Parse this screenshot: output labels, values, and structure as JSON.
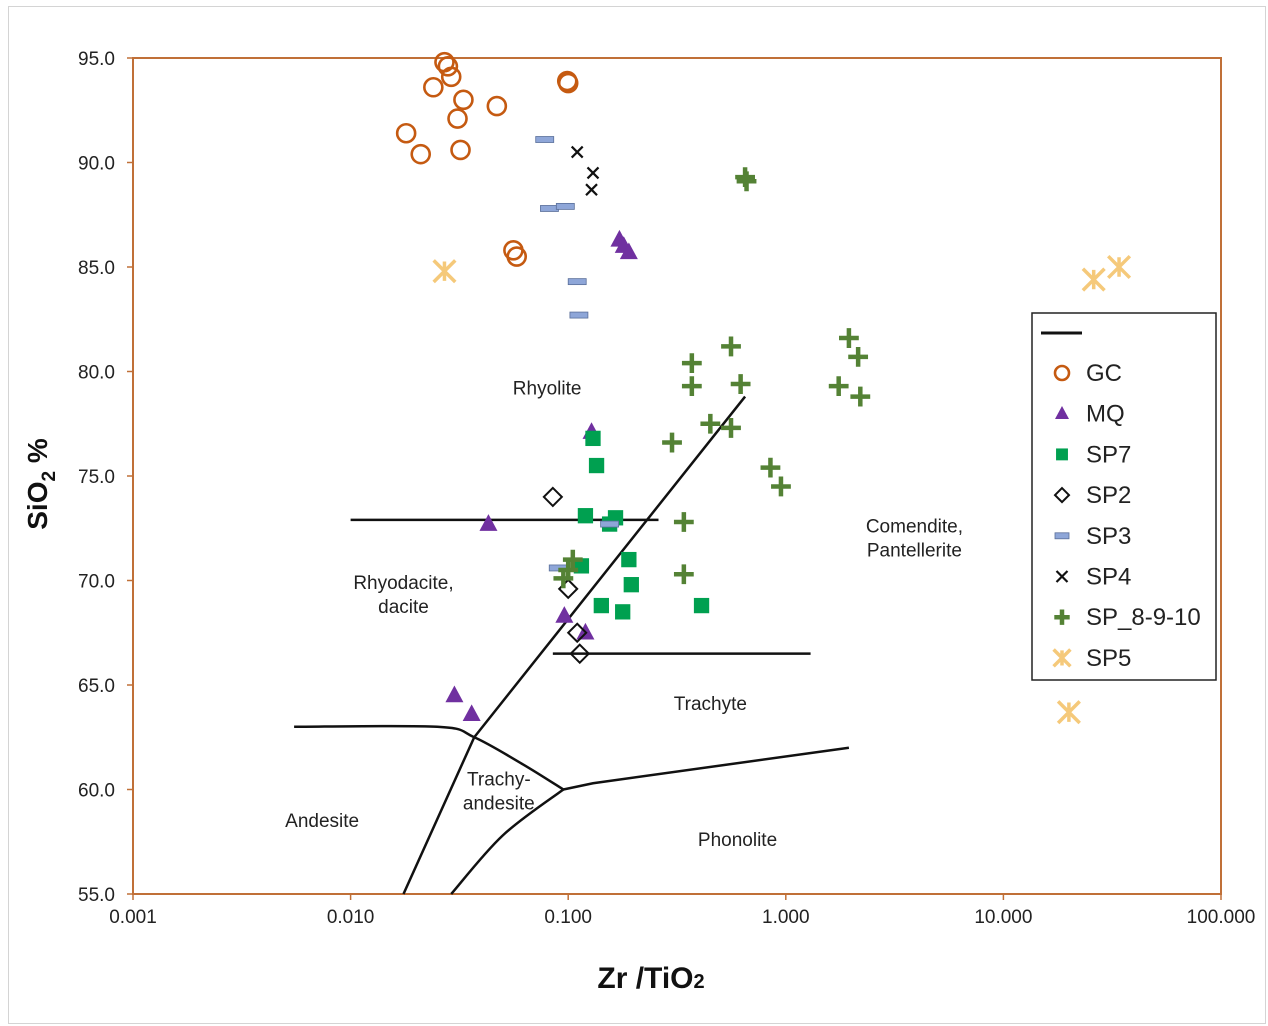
{
  "chart_data": {
    "type": "scatter",
    "title": "",
    "xlabel": "Zr /TiO2",
    "xlabel_main": "Zr /TiO",
    "xlabel_sub": "2",
    "ylabel": "SiO2 %",
    "ylabel_pre": "SiO",
    "ylabel_sub": "2",
    "ylabel_post": " %",
    "x_scale": "log",
    "xlim": [
      0.001,
      100
    ],
    "ylim": [
      55,
      95
    ],
    "x_ticks": [
      {
        "value": 0.001,
        "label": "0.001"
      },
      {
        "value": 0.01,
        "label": "0.010"
      },
      {
        "value": 0.1,
        "label": "0.100"
      },
      {
        "value": 1,
        "label": "1.000"
      },
      {
        "value": 10,
        "label": "10.000"
      },
      {
        "value": 100,
        "label": "100.000"
      }
    ],
    "y_ticks": [
      {
        "value": 95,
        "label": "95.0"
      },
      {
        "value": 90,
        "label": "90.0"
      },
      {
        "value": 85,
        "label": "85.0"
      },
      {
        "value": 80,
        "label": "80.0"
      },
      {
        "value": 75,
        "label": "75.0"
      },
      {
        "value": 70,
        "label": "70.0"
      },
      {
        "value": 65,
        "label": "65.0"
      },
      {
        "value": 60,
        "label": "60.0"
      },
      {
        "value": 55,
        "label": "55.0"
      }
    ],
    "grid": false,
    "legend_position": "right",
    "legend_line_label": "",
    "fields": [
      {
        "name": "Rhyolite",
        "lines": [
          "Rhyolite"
        ],
        "x": 0.08,
        "y": 78.9
      },
      {
        "name": "Rhyodacite, dacite",
        "lines": [
          "Rhyodacite,",
          "dacite"
        ],
        "x": 0.0175,
        "y": 69.6
      },
      {
        "name": "Comendite, Pantellerite",
        "lines": [
          "Comendite,",
          "Pantellerite"
        ],
        "x": 3.9,
        "y": 72.3
      },
      {
        "name": "Trachyte",
        "lines": [
          "Trachyte"
        ],
        "x": 0.45,
        "y": 63.8
      },
      {
        "name": "Trachy-andesite",
        "lines": [
          "Trachy-",
          "andesite"
        ],
        "x": 0.048,
        "y": 60.2
      },
      {
        "name": "Andesite",
        "lines": [
          "Andesite"
        ],
        "x": 0.0074,
        "y": 58.2
      },
      {
        "name": "Phonolite",
        "lines": [
          "Phonolite"
        ],
        "x": 0.6,
        "y": 57.3
      }
    ],
    "boundaries": [
      {
        "points": [
          [
            0.0175,
            55
          ],
          [
            0.037,
            62.5
          ],
          [
            0.65,
            78.8
          ]
        ],
        "smooth": false
      },
      {
        "points": [
          [
            0.01,
            72.9
          ],
          [
            0.26,
            72.9
          ]
        ],
        "smooth": false
      },
      {
        "points": [
          [
            0.085,
            66.5
          ],
          [
            1.3,
            66.5
          ]
        ],
        "smooth": false
      },
      {
        "points": [
          [
            0.0055,
            63
          ],
          [
            0.025,
            63
          ],
          [
            0.037,
            62.5
          ],
          [
            0.062,
            61.2
          ],
          [
            0.095,
            60
          ]
        ],
        "smooth": true
      },
      {
        "points": [
          [
            0.029,
            55
          ],
          [
            0.05,
            57.8
          ],
          [
            0.095,
            60
          ]
        ],
        "smooth": true
      },
      {
        "points": [
          [
            0.095,
            60
          ],
          [
            0.13,
            60.3
          ],
          [
            1.95,
            62
          ]
        ],
        "smooth": false
      }
    ],
    "series": [
      {
        "name": "GC",
        "marker": "circle-open",
        "color": "#c55a11",
        "points": [
          [
            0.027,
            94.8
          ],
          [
            0.028,
            94.6
          ],
          [
            0.029,
            94.1
          ],
          [
            0.024,
            93.6
          ],
          [
            0.033,
            93.0
          ],
          [
            0.047,
            92.7
          ],
          [
            0.031,
            92.1
          ],
          [
            0.018,
            91.4
          ],
          [
            0.032,
            90.6
          ],
          [
            0.021,
            90.4
          ],
          [
            0.099,
            93.9
          ],
          [
            0.1,
            93.8
          ],
          [
            0.056,
            85.8
          ],
          [
            0.058,
            85.5
          ]
        ]
      },
      {
        "name": "MQ",
        "marker": "triangle",
        "color": "#7030a0",
        "points": [
          [
            0.172,
            86.3
          ],
          [
            0.18,
            86.0
          ],
          [
            0.19,
            85.7
          ],
          [
            0.128,
            77.1
          ],
          [
            0.043,
            72.7
          ],
          [
            0.096,
            68.3
          ],
          [
            0.12,
            67.5
          ],
          [
            0.03,
            64.5
          ],
          [
            0.036,
            63.6
          ]
        ]
      },
      {
        "name": "SP7",
        "marker": "square",
        "color": "#00a050",
        "points": [
          [
            0.13,
            76.8
          ],
          [
            0.135,
            75.5
          ],
          [
            0.12,
            73.1
          ],
          [
            0.165,
            73.0
          ],
          [
            0.155,
            72.7
          ],
          [
            0.19,
            71.0
          ],
          [
            0.115,
            70.7
          ],
          [
            0.195,
            69.8
          ],
          [
            0.142,
            68.8
          ],
          [
            0.178,
            68.5
          ],
          [
            0.41,
            68.8
          ]
        ]
      },
      {
        "name": "SP2",
        "marker": "diamond-open",
        "color": "#111111",
        "points": [
          [
            0.085,
            74.0
          ],
          [
            0.1,
            69.6
          ],
          [
            0.11,
            67.5
          ],
          [
            0.113,
            66.5
          ]
        ]
      },
      {
        "name": "SP3",
        "marker": "dash",
        "color": "#8ea6d8",
        "points": [
          [
            0.078,
            91.1
          ],
          [
            0.082,
            87.8
          ],
          [
            0.097,
            87.9
          ],
          [
            0.11,
            84.3
          ],
          [
            0.112,
            82.7
          ],
          [
            0.155,
            72.7
          ],
          [
            0.09,
            70.6
          ]
        ]
      },
      {
        "name": "SP4",
        "marker": "x",
        "color": "#111111",
        "points": [
          [
            0.11,
            90.5
          ],
          [
            0.13,
            89.5
          ],
          [
            0.128,
            88.7
          ]
        ]
      },
      {
        "name": "SP_8-9-10",
        "marker": "plus",
        "color": "#548235",
        "points": [
          [
            0.65,
            89.3
          ],
          [
            0.66,
            89.1
          ],
          [
            0.37,
            80.4
          ],
          [
            0.56,
            81.2
          ],
          [
            0.37,
            79.3
          ],
          [
            0.62,
            79.4
          ],
          [
            1.95,
            81.6
          ],
          [
            2.15,
            80.7
          ],
          [
            1.75,
            79.3
          ],
          [
            2.2,
            78.8
          ],
          [
            0.45,
            77.5
          ],
          [
            0.56,
            77.3
          ],
          [
            0.3,
            76.6
          ],
          [
            0.85,
            75.4
          ],
          [
            0.95,
            74.5
          ],
          [
            0.34,
            72.8
          ],
          [
            0.105,
            71.0
          ],
          [
            0.1,
            70.5
          ],
          [
            0.095,
            70.1
          ],
          [
            0.34,
            70.3
          ]
        ]
      },
      {
        "name": "SP5",
        "marker": "asterisk",
        "color": "#f5c97a",
        "points": [
          [
            0.027,
            84.8
          ],
          [
            26,
            84.4
          ],
          [
            34,
            85.0
          ],
          [
            20,
            63.7
          ]
        ]
      }
    ]
  }
}
